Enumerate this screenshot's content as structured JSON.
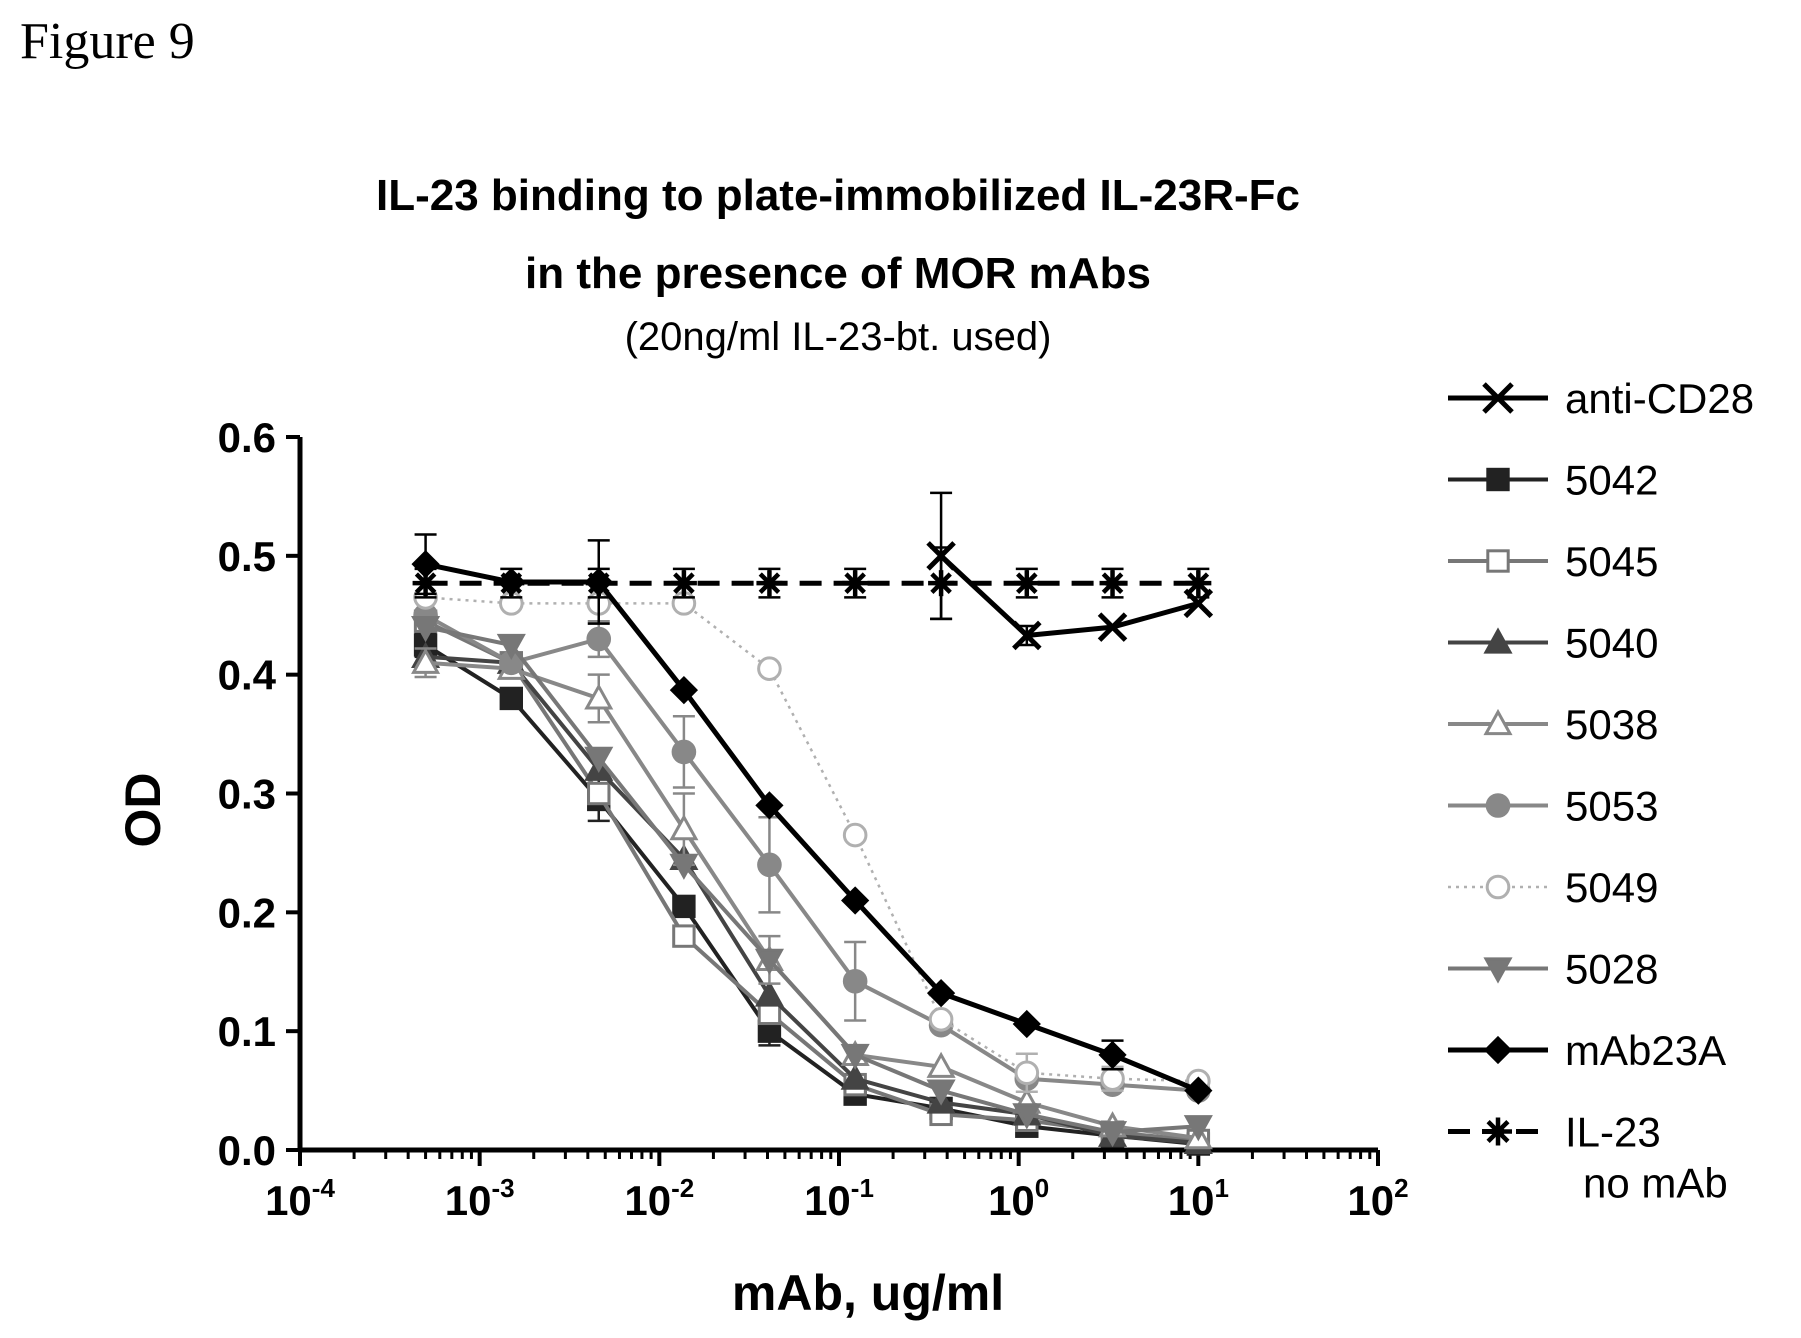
{
  "figure_label": "Figure 9",
  "chart_data": {
    "type": "line",
    "title_line1": "IL-23 binding to plate-immobilized IL-23R-Fc",
    "title_line2": "in the presence of MOR mAbs",
    "subtitle": "(20ng/ml IL-23-bt. used)",
    "xlabel": "mAb, ug/ml",
    "ylabel": "OD",
    "x_scale": "log",
    "xlim": [
      0.0001,
      100
    ],
    "ylim": [
      0.0,
      0.6
    ],
    "x_ticks": [
      {
        "base": "10",
        "exp": "-4"
      },
      {
        "base": "10",
        "exp": "-3"
      },
      {
        "base": "10",
        "exp": "-2"
      },
      {
        "base": "10",
        "exp": "-1"
      },
      {
        "base": "10",
        "exp": "0"
      },
      {
        "base": "10",
        "exp": "1"
      },
      {
        "base": "10",
        "exp": "2"
      }
    ],
    "y_ticks": [
      "0.0",
      "0.1",
      "0.2",
      "0.3",
      "0.4",
      "0.5",
      "0.6"
    ],
    "grid": false,
    "legend_position": "right",
    "x": [
      0.0005,
      0.0015,
      0.0046,
      0.0137,
      0.041,
      0.123,
      0.37,
      1.11,
      3.33,
      10
    ],
    "series": [
      {
        "name": "anti-CD28",
        "marker": "x",
        "color": "#000000",
        "fill": "none",
        "dash": "solid",
        "values": [
          null,
          null,
          null,
          null,
          null,
          null,
          0.5,
          0.433,
          0.44,
          0.46
        ],
        "errors": [
          0,
          0,
          0,
          0,
          0,
          0,
          0.053,
          0.008,
          0,
          0
        ]
      },
      {
        "name": "5042",
        "marker": "square",
        "color": "#222222",
        "fill": "#222222",
        "dash": "solid",
        "values": [
          0.425,
          0.38,
          0.295,
          0.205,
          0.1,
          0.047,
          0.035,
          0.02,
          0.012,
          0.005
        ],
        "errors": [
          0.01,
          0,
          0.018,
          0,
          0.012,
          0,
          0,
          0,
          0,
          0
        ]
      },
      {
        "name": "5045",
        "marker": "square",
        "color": "#777777",
        "fill": "#ffffff",
        "dash": "solid",
        "values": [
          0.445,
          0.41,
          0.3,
          0.18,
          0.115,
          0.055,
          0.03,
          0.025,
          0.015,
          0.008
        ],
        "errors": [
          0,
          0,
          0,
          0,
          0,
          0,
          0,
          0,
          0,
          0
        ]
      },
      {
        "name": "5040",
        "marker": "triangle-up",
        "color": "#444444",
        "fill": "#444444",
        "dash": "solid",
        "values": [
          0.415,
          0.41,
          0.32,
          0.245,
          0.13,
          0.06,
          0.04,
          0.03,
          0.012,
          0.006
        ],
        "errors": [
          0,
          0,
          0,
          0,
          0,
          0,
          0,
          0,
          0,
          0
        ]
      },
      {
        "name": "5038",
        "marker": "triangle-up",
        "color": "#888888",
        "fill": "#ffffff",
        "dash": "solid",
        "values": [
          0.41,
          0.405,
          0.38,
          0.27,
          0.16,
          0.08,
          0.07,
          0.04,
          0.02,
          0.01
        ],
        "errors": [
          0.012,
          0,
          0.02,
          0.03,
          0.02,
          0,
          0,
          0,
          0,
          0
        ]
      },
      {
        "name": "5053",
        "marker": "circle",
        "color": "#888888",
        "fill": "#888888",
        "dash": "solid",
        "values": [
          0.45,
          0.41,
          0.43,
          0.335,
          0.24,
          0.142,
          0.105,
          0.06,
          0.055,
          0.05
        ],
        "errors": [
          0,
          0,
          0.015,
          0.03,
          0.04,
          0.033,
          0,
          0,
          0,
          0
        ]
      },
      {
        "name": "5049",
        "marker": "circle",
        "color": "#b0b0b0",
        "fill": "#ffffff",
        "dash": "dotted",
        "values": [
          0.465,
          0.46,
          0.46,
          0.46,
          0.405,
          0.265,
          0.11,
          0.065,
          0.06,
          0.058
        ],
        "errors": [
          0,
          0,
          0,
          0,
          0,
          0,
          0,
          0.016,
          0.01,
          0
        ]
      },
      {
        "name": "5028",
        "marker": "triangle-down",
        "color": "#777777",
        "fill": "#777777",
        "dash": "solid",
        "values": [
          0.44,
          0.425,
          0.33,
          0.24,
          0.16,
          0.08,
          0.05,
          0.03,
          0.015,
          0.02
        ],
        "errors": [
          0,
          0,
          0,
          0,
          0,
          0,
          0,
          0,
          0,
          0
        ]
      },
      {
        "name": "mAb23A",
        "marker": "diamond",
        "color": "#000000",
        "fill": "#000000",
        "dash": "solid",
        "values": [
          0.493,
          0.478,
          0.478,
          0.387,
          0.29,
          0.21,
          0.132,
          0.106,
          0.08,
          0.05
        ],
        "errors": [
          0.025,
          0,
          0.035,
          0,
          0,
          0,
          0,
          0,
          0.012,
          0
        ]
      },
      {
        "name": "IL-23",
        "name_line2": "no mAb",
        "marker": "asterisk",
        "color": "#000000",
        "fill": "none",
        "dash": "dashed",
        "values": [
          0.477,
          0.477,
          0.477,
          0.477,
          0.477,
          0.477,
          0.477,
          0.477,
          0.477,
          0.477
        ],
        "errors": [
          0.012,
          0.012,
          0.012,
          0.012,
          0.012,
          0.012,
          0.03,
          0.012,
          0.012,
          0.012
        ]
      }
    ]
  }
}
